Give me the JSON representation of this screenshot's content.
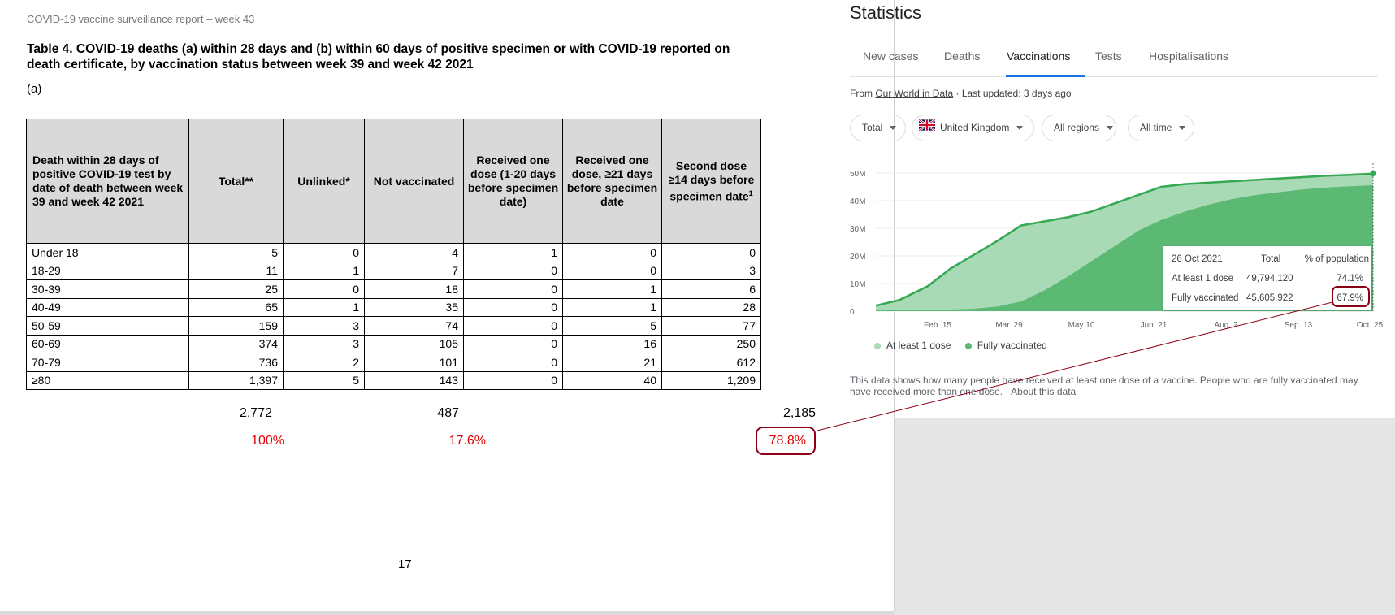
{
  "document": {
    "header": "COVID-19 vaccine surveillance report – week 43",
    "caption": "Table 4. COVID-19 deaths (a) within 28 days and (b) within 60 days of positive specimen or with COVID-19 reported on death certificate, by vaccination status between week 39 and week 42 2021",
    "subheading": "(a)",
    "columns": [
      "Death within 28 days of positive COVID-19 test by date of death between week 39 and week 42 2021",
      "Total**",
      "Unlinked*",
      "Not vaccinated",
      "Received one dose (1-20 days before specimen date)",
      "Received one dose, ≥21 days before specimen date",
      "Second dose ≥14 days before specimen date"
    ],
    "col6_superscript": "1",
    "rows": [
      [
        "Under 18",
        "5",
        "0",
        "4",
        "1",
        "0",
        "0"
      ],
      [
        "18-29",
        "11",
        "1",
        "7",
        "0",
        "0",
        "3"
      ],
      [
        "30-39",
        "25",
        "0",
        "18",
        "0",
        "1",
        "6"
      ],
      [
        "40-49",
        "65",
        "1",
        "35",
        "0",
        "1",
        "28"
      ],
      [
        "50-59",
        "159",
        "3",
        "74",
        "0",
        "5",
        "77"
      ],
      [
        "60-69",
        "374",
        "3",
        "105",
        "0",
        "16",
        "250"
      ],
      [
        "70-79",
        "736",
        "2",
        "101",
        "0",
        "21",
        "612"
      ],
      [
        "≥80",
        "1,397",
        "5",
        "143",
        "0",
        "40",
        "1,209"
      ]
    ],
    "totals": {
      "total": "2,772",
      "not_vaccinated": "487",
      "second_dose": "2,185"
    },
    "percentages": {
      "total": "100%",
      "not_vaccinated": "17.6%",
      "second_dose": "78.8%"
    },
    "page_number": "17"
  },
  "stats": {
    "title": "Statistics",
    "tabs": [
      "New cases",
      "Deaths",
      "Vaccinations",
      "Tests",
      "Hospitalisations"
    ],
    "active_tab": "Vaccinations",
    "source_prefix": "From ",
    "source_link": "Our World in Data",
    "source_suffix": " · Last updated: 3 days ago",
    "filters": {
      "measure": "Total",
      "country": "United Kingdom",
      "region": "All regions",
      "period": "All time"
    },
    "tooltip": {
      "date": "26 Oct 2021",
      "col_total": "Total",
      "col_pct": "% of population",
      "rows": [
        {
          "label": "At least 1 dose",
          "total": "49,794,120",
          "pct": "74.1%"
        },
        {
          "label": "Fully vaccinated",
          "total": "45,605,922",
          "pct": "67.9%"
        }
      ]
    },
    "legend": [
      "At least 1 dose",
      "Fully vaccinated"
    ],
    "note": "This data shows how many people have received at least one dose of a vaccine. People who are fully vaccinated may have received more than one dose.",
    "note_link": "About this data",
    "colors": {
      "at_least_one": "#a8dab5",
      "fully": "#5bb974",
      "line": "#34a853",
      "tab_accent": "#1a73e8",
      "highlight": "#8b0016",
      "percent_red": "#e00000"
    }
  },
  "chart_data": {
    "type": "area",
    "y_tick_labels": [
      "0",
      "10M",
      "20M",
      "30M",
      "40M",
      "50M"
    ],
    "x_tick_labels": [
      "Feb. 15",
      "Mar. 29",
      "May 10",
      "Jun. 21",
      "Aug. 2",
      "Sep. 13",
      "Oct. 25"
    ],
    "ylim": [
      0,
      50000000
    ],
    "xlim": [
      "2021-01-01",
      "2021-10-26"
    ],
    "series": [
      {
        "name": "At least 1 dose",
        "x": [
          "2021-01-01",
          "2021-01-15",
          "2021-02-01",
          "2021-02-15",
          "2021-03-01",
          "2021-03-15",
          "2021-03-29",
          "2021-04-12",
          "2021-04-26",
          "2021-05-10",
          "2021-05-24",
          "2021-06-07",
          "2021-06-21",
          "2021-07-05",
          "2021-07-19",
          "2021-08-02",
          "2021-08-16",
          "2021-08-30",
          "2021-09-13",
          "2021-09-27",
          "2021-10-11",
          "2021-10-26"
        ],
        "values": [
          2000000,
          4000000,
          9000000,
          15500000,
          20500000,
          25500000,
          31000000,
          32500000,
          34000000,
          36000000,
          39000000,
          42000000,
          45000000,
          46000000,
          46500000,
          47000000,
          47500000,
          48000000,
          48500000,
          49000000,
          49300000,
          49794120
        ]
      },
      {
        "name": "Fully vaccinated",
        "x": [
          "2021-01-01",
          "2021-01-15",
          "2021-02-01",
          "2021-02-15",
          "2021-03-01",
          "2021-03-15",
          "2021-03-29",
          "2021-04-12",
          "2021-04-26",
          "2021-05-10",
          "2021-05-24",
          "2021-06-07",
          "2021-06-21",
          "2021-07-05",
          "2021-07-19",
          "2021-08-02",
          "2021-08-16",
          "2021-08-30",
          "2021-09-13",
          "2021-09-27",
          "2021-10-11",
          "2021-10-26"
        ],
        "values": [
          500000,
          500000,
          550000,
          600000,
          900000,
          1700000,
          3500000,
          7500000,
          12500000,
          18000000,
          23500000,
          29000000,
          33000000,
          36000000,
          38500000,
          40500000,
          42000000,
          43000000,
          44000000,
          44700000,
          45200000,
          45605922
        ]
      }
    ]
  }
}
